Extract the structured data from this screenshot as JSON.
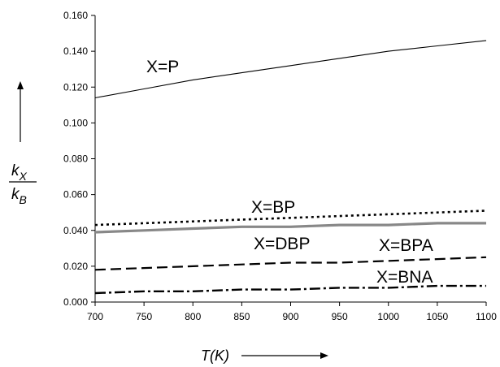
{
  "chart_data": {
    "type": "line",
    "x": [
      700,
      750,
      800,
      850,
      900,
      950,
      1000,
      1050,
      1100
    ],
    "xlim": [
      700,
      1100
    ],
    "ylim": [
      0.0,
      0.16
    ],
    "x_ticks": [
      "700",
      "750",
      "800",
      "850",
      "900",
      "950",
      "1000",
      "1050",
      "1100"
    ],
    "y_ticks": [
      "0.000",
      "0.020",
      "0.040",
      "0.060",
      "0.080",
      "0.100",
      "0.120",
      "0.140",
      "0.160"
    ],
    "xlabel": "T(K)",
    "ylabel": {
      "numerator_base": "k",
      "numerator_sub": "X",
      "denominator_base": "k",
      "denominator_sub": "B"
    },
    "grid": false,
    "series": [
      {
        "name": "X=P",
        "style": "solid",
        "color": "#000000",
        "values": [
          0.114,
          0.119,
          0.124,
          0.128,
          0.132,
          0.136,
          0.14,
          0.143,
          0.146
        ]
      },
      {
        "name": "X=BP",
        "style": "dotted",
        "color": "#000000",
        "values": [
          0.043,
          0.044,
          0.045,
          0.046,
          0.047,
          0.048,
          0.049,
          0.05,
          0.051
        ]
      },
      {
        "name": "X=DBP",
        "style": "gray-solid",
        "color": "#888888",
        "values": [
          0.039,
          0.04,
          0.041,
          0.042,
          0.042,
          0.043,
          0.043,
          0.044,
          0.044
        ]
      },
      {
        "name": "X=BPA",
        "style": "dashed",
        "color": "#000000",
        "values": [
          0.018,
          0.019,
          0.02,
          0.021,
          0.022,
          0.022,
          0.023,
          0.024,
          0.025
        ]
      },
      {
        "name": "X=BNA",
        "style": "dash-dot",
        "color": "#000000",
        "values": [
          0.005,
          0.006,
          0.006,
          0.007,
          0.007,
          0.008,
          0.008,
          0.009,
          0.009
        ]
      }
    ]
  }
}
